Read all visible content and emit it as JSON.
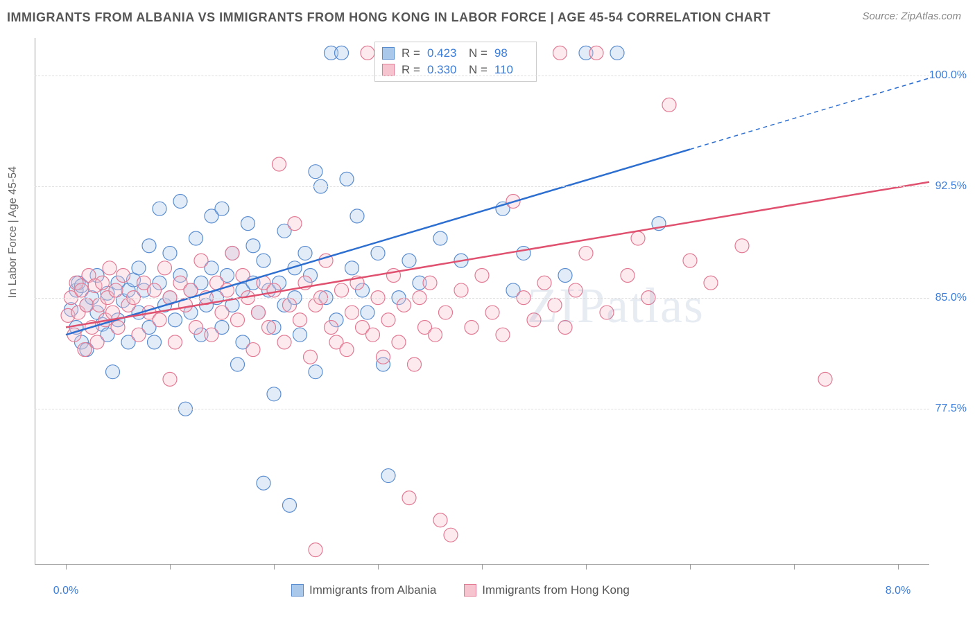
{
  "title": "IMMIGRANTS FROM ALBANIA VS IMMIGRANTS FROM HONG KONG IN LABOR FORCE | AGE 45-54 CORRELATION CHART",
  "source": "Source: ZipAtlas.com",
  "y_axis_label": "In Labor Force | Age 45-54",
  "watermark": "ZIPatlas",
  "chart": {
    "type": "scatter-with-regression",
    "background_color": "#ffffff",
    "grid_color": "#dddddd",
    "axis_color": "#999999",
    "tick_label_color": "#3b7dd8",
    "axis_label_color": "#666666",
    "title_color": "#555555",
    "xlim": [
      -0.3,
      8.3
    ],
    "ylim": [
      67.0,
      102.5
    ],
    "x_ticks": [
      0.0,
      1.0,
      2.0,
      3.0,
      4.0,
      5.0,
      6.0,
      7.0,
      8.0
    ],
    "x_tick_labels": {
      "0": "0.0%",
      "8": "8.0%"
    },
    "y_ticks": [
      77.5,
      85.0,
      92.5,
      100.0
    ],
    "y_tick_labels": [
      "77.5%",
      "85.0%",
      "92.5%",
      "100.0%"
    ],
    "marker_radius": 10,
    "marker_fill_opacity": 0.35,
    "marker_stroke_width": 1.2,
    "line_width": 2.5,
    "series": [
      {
        "name": "Immigrants from Albania",
        "color_fill": "#a9c8ea",
        "color_stroke": "#5a8dd0",
        "line_color": "#2d6fd0",
        "r": "0.423",
        "n": "98",
        "trend": {
          "x1": 0.0,
          "y1": 82.5,
          "x2": 6.0,
          "y2": 95.0,
          "x2_dash": 8.3,
          "y2_dash": 99.8
        },
        "points": [
          [
            0.05,
            84.2
          ],
          [
            0.1,
            85.5
          ],
          [
            0.1,
            83.0
          ],
          [
            0.12,
            86.0
          ],
          [
            0.15,
            82.0
          ],
          [
            0.15,
            85.8
          ],
          [
            0.2,
            84.5
          ],
          [
            0.2,
            81.5
          ],
          [
            0.25,
            85.0
          ],
          [
            0.3,
            84.0
          ],
          [
            0.3,
            86.5
          ],
          [
            0.35,
            83.2
          ],
          [
            0.4,
            85.3
          ],
          [
            0.4,
            82.5
          ],
          [
            0.45,
            80.0
          ],
          [
            0.5,
            86.0
          ],
          [
            0.5,
            83.5
          ],
          [
            0.55,
            84.8
          ],
          [
            0.6,
            85.5
          ],
          [
            0.6,
            82.0
          ],
          [
            0.65,
            86.2
          ],
          [
            0.7,
            87.0
          ],
          [
            0.7,
            84.0
          ],
          [
            0.75,
            85.5
          ],
          [
            0.8,
            83.0
          ],
          [
            0.8,
            88.5
          ],
          [
            0.85,
            82.0
          ],
          [
            0.9,
            86.0
          ],
          [
            0.9,
            91.0
          ],
          [
            0.95,
            84.5
          ],
          [
            1.0,
            85.0
          ],
          [
            1.0,
            88.0
          ],
          [
            1.05,
            83.5
          ],
          [
            1.1,
            91.5
          ],
          [
            1.1,
            86.5
          ],
          [
            1.15,
            77.5
          ],
          [
            1.2,
            84.0
          ],
          [
            1.2,
            85.5
          ],
          [
            1.25,
            89.0
          ],
          [
            1.3,
            86.0
          ],
          [
            1.3,
            82.5
          ],
          [
            1.35,
            84.5
          ],
          [
            1.4,
            90.5
          ],
          [
            1.4,
            87.0
          ],
          [
            1.45,
            85.0
          ],
          [
            1.5,
            91.0
          ],
          [
            1.5,
            83.0
          ],
          [
            1.55,
            86.5
          ],
          [
            1.6,
            88.0
          ],
          [
            1.6,
            84.5
          ],
          [
            1.65,
            80.5
          ],
          [
            1.7,
            85.5
          ],
          [
            1.7,
            82.0
          ],
          [
            1.75,
            90.0
          ],
          [
            1.8,
            86.0
          ],
          [
            1.8,
            88.5
          ],
          [
            1.85,
            84.0
          ],
          [
            1.9,
            87.5
          ],
          [
            1.9,
            72.5
          ],
          [
            1.95,
            85.5
          ],
          [
            2.0,
            83.0
          ],
          [
            2.0,
            78.5
          ],
          [
            2.05,
            86.0
          ],
          [
            2.1,
            89.5
          ],
          [
            2.1,
            84.5
          ],
          [
            2.15,
            71.0
          ],
          [
            2.2,
            87.0
          ],
          [
            2.2,
            85.0
          ],
          [
            2.25,
            82.5
          ],
          [
            2.3,
            88.0
          ],
          [
            2.35,
            86.5
          ],
          [
            2.4,
            93.5
          ],
          [
            2.4,
            80.0
          ],
          [
            2.45,
            92.5
          ],
          [
            2.5,
            85.0
          ],
          [
            2.55,
            101.5
          ],
          [
            2.6,
            83.5
          ],
          [
            2.65,
            101.5
          ],
          [
            2.7,
            93.0
          ],
          [
            2.75,
            87.0
          ],
          [
            2.8,
            90.5
          ],
          [
            2.85,
            85.5
          ],
          [
            2.9,
            84.0
          ],
          [
            3.0,
            88.0
          ],
          [
            3.05,
            80.5
          ],
          [
            3.1,
            73.0
          ],
          [
            3.2,
            85.0
          ],
          [
            3.3,
            87.5
          ],
          [
            3.4,
            86.0
          ],
          [
            3.6,
            89.0
          ],
          [
            3.8,
            87.5
          ],
          [
            4.2,
            91.0
          ],
          [
            4.3,
            85.5
          ],
          [
            4.4,
            88.0
          ],
          [
            4.8,
            86.5
          ],
          [
            5.0,
            101.5
          ],
          [
            5.3,
            101.5
          ],
          [
            5.7,
            90.0
          ]
        ]
      },
      {
        "name": "Immigrants from Hong Kong",
        "color_fill": "#f6c4cf",
        "color_stroke": "#e27a94",
        "line_color": "#e0506f",
        "r": "0.330",
        "n": "110",
        "trend": {
          "x1": 0.0,
          "y1": 83.0,
          "x2": 8.3,
          "y2": 92.8
        },
        "points": [
          [
            0.02,
            83.8
          ],
          [
            0.05,
            85.0
          ],
          [
            0.08,
            82.5
          ],
          [
            0.1,
            86.0
          ],
          [
            0.12,
            84.0
          ],
          [
            0.15,
            85.5
          ],
          [
            0.18,
            81.5
          ],
          [
            0.2,
            84.5
          ],
          [
            0.22,
            86.5
          ],
          [
            0.25,
            83.0
          ],
          [
            0.28,
            85.8
          ],
          [
            0.3,
            82.0
          ],
          [
            0.32,
            84.5
          ],
          [
            0.35,
            86.0
          ],
          [
            0.38,
            83.5
          ],
          [
            0.4,
            85.0
          ],
          [
            0.42,
            87.0
          ],
          [
            0.45,
            84.0
          ],
          [
            0.48,
            85.5
          ],
          [
            0.5,
            83.0
          ],
          [
            0.55,
            86.5
          ],
          [
            0.6,
            84.5
          ],
          [
            0.65,
            85.0
          ],
          [
            0.7,
            82.5
          ],
          [
            0.75,
            86.0
          ],
          [
            0.8,
            84.0
          ],
          [
            0.85,
            85.5
          ],
          [
            0.9,
            83.5
          ],
          [
            0.95,
            87.0
          ],
          [
            1.0,
            85.0
          ],
          [
            1.0,
            79.5
          ],
          [
            1.05,
            82.0
          ],
          [
            1.1,
            86.0
          ],
          [
            1.15,
            84.5
          ],
          [
            1.2,
            85.5
          ],
          [
            1.25,
            83.0
          ],
          [
            1.3,
            87.5
          ],
          [
            1.35,
            85.0
          ],
          [
            1.4,
            82.5
          ],
          [
            1.45,
            86.0
          ],
          [
            1.5,
            84.0
          ],
          [
            1.55,
            85.5
          ],
          [
            1.6,
            88.0
          ],
          [
            1.65,
            83.5
          ],
          [
            1.7,
            86.5
          ],
          [
            1.75,
            85.0
          ],
          [
            1.8,
            81.5
          ],
          [
            1.85,
            84.0
          ],
          [
            1.9,
            86.0
          ],
          [
            1.95,
            83.0
          ],
          [
            2.0,
            85.5
          ],
          [
            2.05,
            94.0
          ],
          [
            2.1,
            82.0
          ],
          [
            2.15,
            84.5
          ],
          [
            2.2,
            90.0
          ],
          [
            2.25,
            83.5
          ],
          [
            2.3,
            86.0
          ],
          [
            2.35,
            81.0
          ],
          [
            2.4,
            84.5
          ],
          [
            2.4,
            68.0
          ],
          [
            2.45,
            85.0
          ],
          [
            2.5,
            87.5
          ],
          [
            2.55,
            83.0
          ],
          [
            2.6,
            82.0
          ],
          [
            2.65,
            85.5
          ],
          [
            2.7,
            81.5
          ],
          [
            2.75,
            84.0
          ],
          [
            2.8,
            86.0
          ],
          [
            2.85,
            83.0
          ],
          [
            2.9,
            101.5
          ],
          [
            2.95,
            82.5
          ],
          [
            3.0,
            85.0
          ],
          [
            3.05,
            81.0
          ],
          [
            3.1,
            83.5
          ],
          [
            3.15,
            86.5
          ],
          [
            3.2,
            82.0
          ],
          [
            3.25,
            84.5
          ],
          [
            3.3,
            71.5
          ],
          [
            3.35,
            80.5
          ],
          [
            3.4,
            85.0
          ],
          [
            3.45,
            83.0
          ],
          [
            3.5,
            86.0
          ],
          [
            3.55,
            82.5
          ],
          [
            3.6,
            70.0
          ],
          [
            3.65,
            84.0
          ],
          [
            3.7,
            69.0
          ],
          [
            3.8,
            85.5
          ],
          [
            3.9,
            83.0
          ],
          [
            4.0,
            86.5
          ],
          [
            4.1,
            84.0
          ],
          [
            4.2,
            82.5
          ],
          [
            4.3,
            91.5
          ],
          [
            4.4,
            85.0
          ],
          [
            4.5,
            83.5
          ],
          [
            4.6,
            86.0
          ],
          [
            4.7,
            84.5
          ],
          [
            4.75,
            101.5
          ],
          [
            4.8,
            83.0
          ],
          [
            4.9,
            85.5
          ],
          [
            5.0,
            88.0
          ],
          [
            5.1,
            101.5
          ],
          [
            5.2,
            84.0
          ],
          [
            5.4,
            86.5
          ],
          [
            5.5,
            89.0
          ],
          [
            5.6,
            85.0
          ],
          [
            5.8,
            98.0
          ],
          [
            6.0,
            87.5
          ],
          [
            6.2,
            86.0
          ],
          [
            6.5,
            88.5
          ],
          [
            7.3,
            79.5
          ]
        ]
      }
    ]
  },
  "legend_top": {
    "r_label": "R =",
    "n_label": "N ="
  },
  "legend_bottom": [
    {
      "label": "Immigrants from Albania",
      "fill": "#a9c8ea",
      "stroke": "#5a8dd0"
    },
    {
      "label": "Immigrants from Hong Kong",
      "fill": "#f6c4cf",
      "stroke": "#e27a94"
    }
  ]
}
